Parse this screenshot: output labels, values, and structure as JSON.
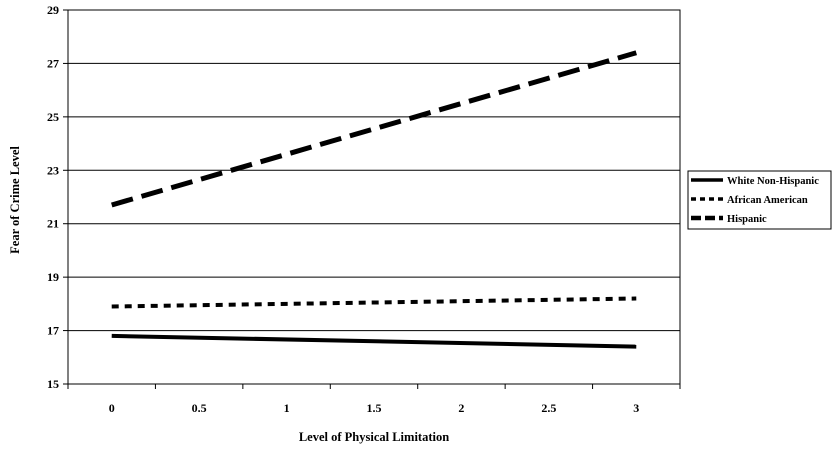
{
  "chart_data": {
    "type": "line",
    "title": "",
    "xlabel": "Level of Physical Limitation",
    "ylabel": "Fear of Crime Level",
    "x": [
      0,
      3
    ],
    "xticks": [
      0,
      0.5,
      1,
      1.5,
      2,
      2.5,
      3
    ],
    "xtick_labels": [
      "0",
      "0.5",
      "1",
      "1.5",
      "2",
      "2.5",
      "3"
    ],
    "xlim": [
      -0.25,
      3.25
    ],
    "ylim": [
      15,
      29
    ],
    "yticks": [
      15,
      17,
      19,
      21,
      23,
      25,
      27,
      29
    ],
    "ytick_labels": [
      "15",
      "17",
      "19",
      "21",
      "23",
      "25",
      "27",
      "29"
    ],
    "grid": "horizontal",
    "legend_position": "right",
    "series": [
      {
        "name": "White Non-Hispanic",
        "values": [
          16.8,
          16.4
        ],
        "style": "solid",
        "color": "#000000"
      },
      {
        "name": "African American",
        "values": [
          17.9,
          18.2
        ],
        "style": "dotted",
        "color": "#000000"
      },
      {
        "name": "Hispanic",
        "values": [
          21.7,
          27.4
        ],
        "style": "dashed",
        "color": "#000000"
      }
    ]
  }
}
